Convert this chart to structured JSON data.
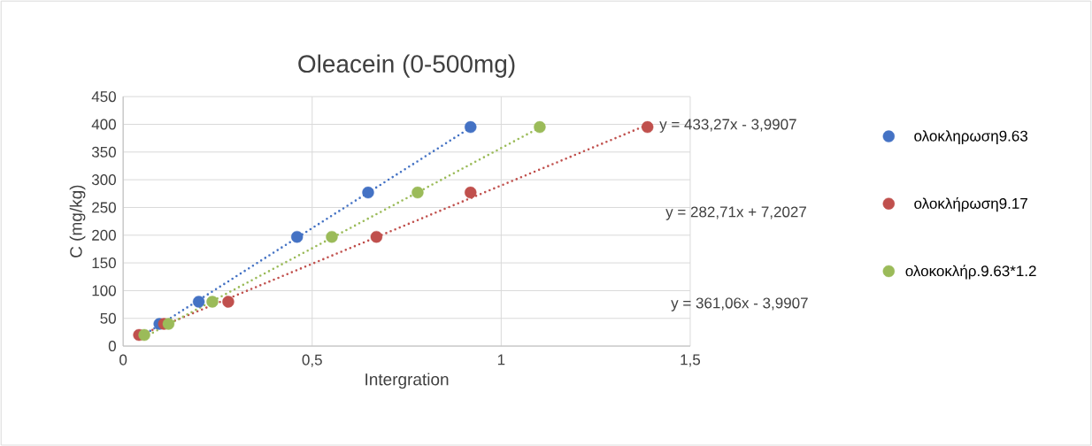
{
  "chart_data": {
    "type": "scatter",
    "title": "Oleacein (0-500mg)",
    "xlabel": "Intergration",
    "ylabel": "C (mg/kg)",
    "xlim": [
      0,
      1.5
    ],
    "ylim": [
      0,
      450
    ],
    "xticks": [
      0,
      {
        "value": 0.5,
        "label": "0,5"
      },
      1,
      {
        "value": 1.5,
        "label": "1,5"
      }
    ],
    "yticks": [
      0,
      50,
      100,
      150,
      200,
      250,
      300,
      350,
      400,
      450
    ],
    "grid": true,
    "legend": "right",
    "series": [
      {
        "name": "ολοκληρωση9.63",
        "color": "#4472c4",
        "marker": "circle",
        "x": [
          null,
          0.096,
          0.2,
          0.46,
          0.648,
          0.919
        ],
        "values": [
          null,
          40,
          80,
          197,
          277,
          395
        ]
      },
      {
        "name": "ολοκλήρωση9.17",
        "color": "#c0504d",
        "marker": "circle",
        "x": [
          0.042,
          0.108,
          0.278,
          0.67,
          0.919,
          1.387
        ],
        "values": [
          20,
          40,
          80,
          197,
          277,
          395
        ]
      },
      {
        "name": "ολοκοκλήρ.9.63*1.2",
        "color": "#9bbb59",
        "marker": "circle",
        "x": [
          0.056,
          0.12,
          0.236,
          0.552,
          0.779,
          1.102
        ],
        "values": [
          20,
          40,
          80,
          197,
          277,
          395
        ]
      },
      {
        "type": "line",
        "color": "#4472c4",
        "marker": "none",
        "line_style": "dotted",
        "x": [
          0.05,
          0.919
        ],
        "values": [
          18,
          394
        ]
      },
      {
        "type": "line",
        "color": "#c0504d",
        "marker": "none",
        "line_style": "dotted",
        "x": [
          0.042,
          1.387
        ],
        "values": [
          19,
          399
        ]
      },
      {
        "type": "line",
        "color": "#9bbb59",
        "marker": "none",
        "line_style": "dotted",
        "x": [
          0.056,
          1.102
        ],
        "values": [
          16,
          394
        ]
      }
    ],
    "annotations": [
      "y = 433,27x - 3,9907",
      "y = 282,71x + 7,2027",
      "y = 361,06x - 3,9907"
    ]
  }
}
